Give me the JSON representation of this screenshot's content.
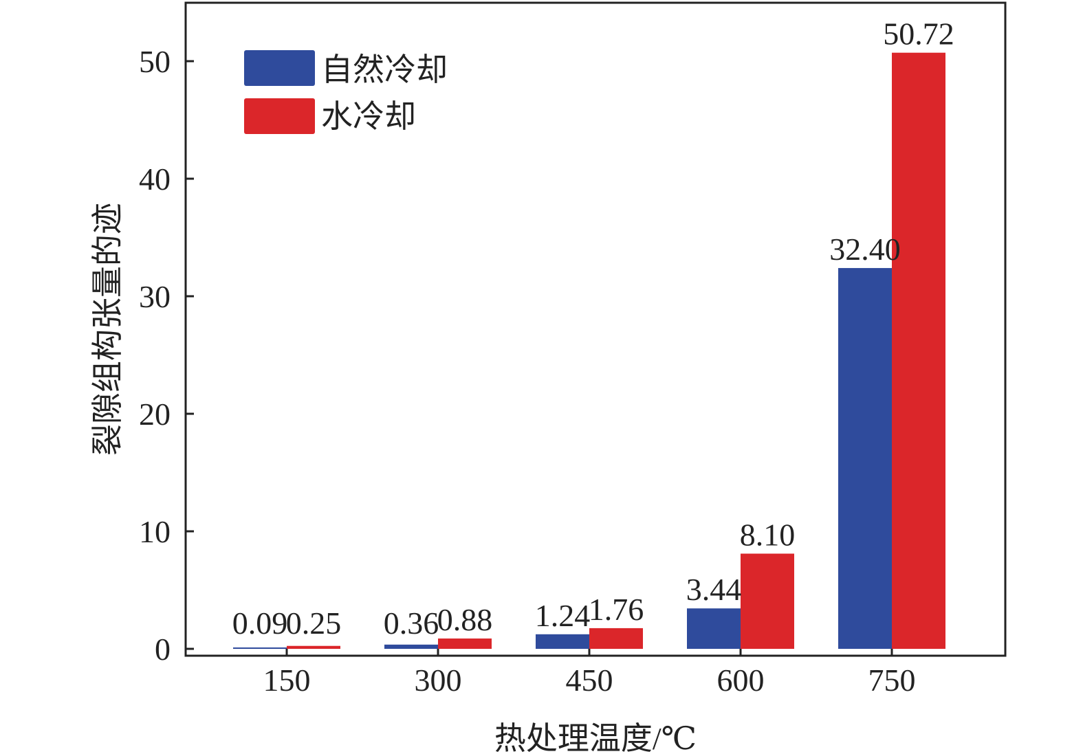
{
  "chart_data": {
    "type": "bar",
    "xlabel": "热处理温度/℃",
    "ylabel": "裂隙组构张量的迹",
    "categories": [
      "150",
      "300",
      "450",
      "600",
      "750"
    ],
    "series": [
      {
        "name": "自然冷却",
        "color": "#2f4b9c",
        "values": [
          0.09,
          0.36,
          1.24,
          3.44,
          32.4
        ],
        "labels": [
          "0.09",
          "0.36",
          "1.24",
          "3.44",
          "32.40"
        ]
      },
      {
        "name": "水冷却",
        "color": "#db262a",
        "values": [
          0.25,
          0.88,
          1.76,
          8.1,
          50.72
        ],
        "labels": [
          "0.25",
          "0.88",
          "1.76",
          "8.10",
          "50.72"
        ]
      }
    ],
    "ylim": [
      0,
      55
    ],
    "yticks": [
      0,
      10,
      20,
      30,
      40,
      50
    ],
    "legend_position": "top-left",
    "grid": false
  }
}
